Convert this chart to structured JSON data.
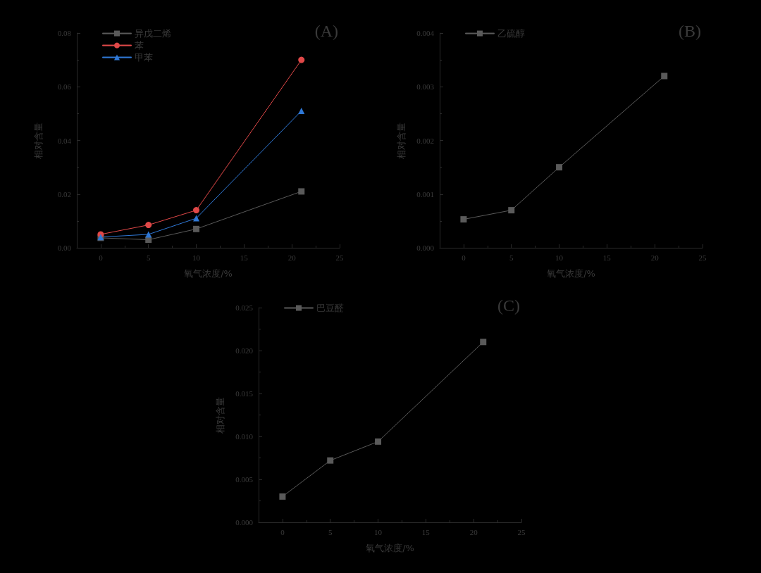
{
  "chart_data": [
    {
      "type": "line",
      "xlabel": "氧气浓度/%",
      "ylabel": "相对含量",
      "annotations": [
        "(A)"
      ],
      "x": [
        0,
        5,
        10,
        21
      ],
      "marker": "square",
      "legend": "top left",
      "grid": false,
      "line_style": "solid",
      "xlim": [
        -2.5,
        25
      ],
      "xticks": [
        0,
        5,
        10,
        15,
        20,
        25
      ],
      "ylim": [
        0,
        0.08
      ],
      "yticks": [
        {
          "value": 0,
          "label": "0.00"
        },
        {
          "value": 0.02,
          "label": "0.02"
        },
        {
          "value": 0.04,
          "label": "0.04"
        },
        {
          "value": 0.06,
          "label": "0.06"
        },
        {
          "value": 0.08,
          "label": "0.08"
        }
      ],
      "series": [
        {
          "name": "异戊二烯",
          "color": "#5a5a5a",
          "values": [
            0.0037,
            0.003,
            0.007,
            0.021
          ]
        },
        {
          "name": "苯",
          "color": "#e04848",
          "marker": "circle",
          "values": [
            0.005,
            0.0085,
            0.014,
            0.07
          ]
        },
        {
          "name": "甲苯",
          "color": "#2f78d6",
          "marker": "triangle",
          "values": [
            0.004,
            0.005,
            0.011,
            0.051
          ]
        }
      ]
    },
    {
      "type": "line",
      "xlabel": "氧气浓度/%",
      "ylabel": "相对含量",
      "annotations": [
        "(B)"
      ],
      "x": [
        0,
        5,
        10,
        21
      ],
      "marker": "square",
      "legend": "top left",
      "grid": false,
      "line_style": "solid",
      "xlim": [
        -2.5,
        25
      ],
      "xticks": [
        0,
        5,
        10,
        15,
        20,
        25
      ],
      "ylim": [
        0,
        0.004
      ],
      "yticks": [
        {
          "value": 0,
          "label": "0.000"
        },
        {
          "value": 0.001,
          "label": "0.001"
        },
        {
          "value": 0.002,
          "label": "0.002"
        },
        {
          "value": 0.003,
          "label": "0.003"
        },
        {
          "value": 0.004,
          "label": "0.004"
        }
      ],
      "series": [
        {
          "name": "乙硫醇",
          "color": "#5a5a5a",
          "values": [
            0.00053,
            0.0007,
            0.0015,
            0.0032
          ]
        }
      ]
    },
    {
      "type": "line",
      "xlabel": "氧气浓度/%",
      "ylabel": "相对含量",
      "annotations": [
        "(C)"
      ],
      "x": [
        0,
        5,
        10,
        21
      ],
      "marker": "square",
      "legend": "top left",
      "grid": false,
      "line_style": "solid",
      "xlim": [
        -2.5,
        25
      ],
      "xticks": [
        0,
        5,
        10,
        15,
        20,
        25
      ],
      "ylim": [
        0,
        0.025
      ],
      "yticks": [
        {
          "value": 0,
          "label": "0.000"
        },
        {
          "value": 0.005,
          "label": "0.005"
        },
        {
          "value": 0.01,
          "label": "0.010"
        },
        {
          "value": 0.015,
          "label": "0.015"
        },
        {
          "value": 0.02,
          "label": "0.020"
        },
        {
          "value": 0.025,
          "label": "0.025"
        }
      ],
      "series": [
        {
          "name": "巴豆醛",
          "color": "#5a5a5a",
          "values": [
            0.003,
            0.0072,
            0.0094,
            0.021
          ]
        }
      ]
    }
  ]
}
